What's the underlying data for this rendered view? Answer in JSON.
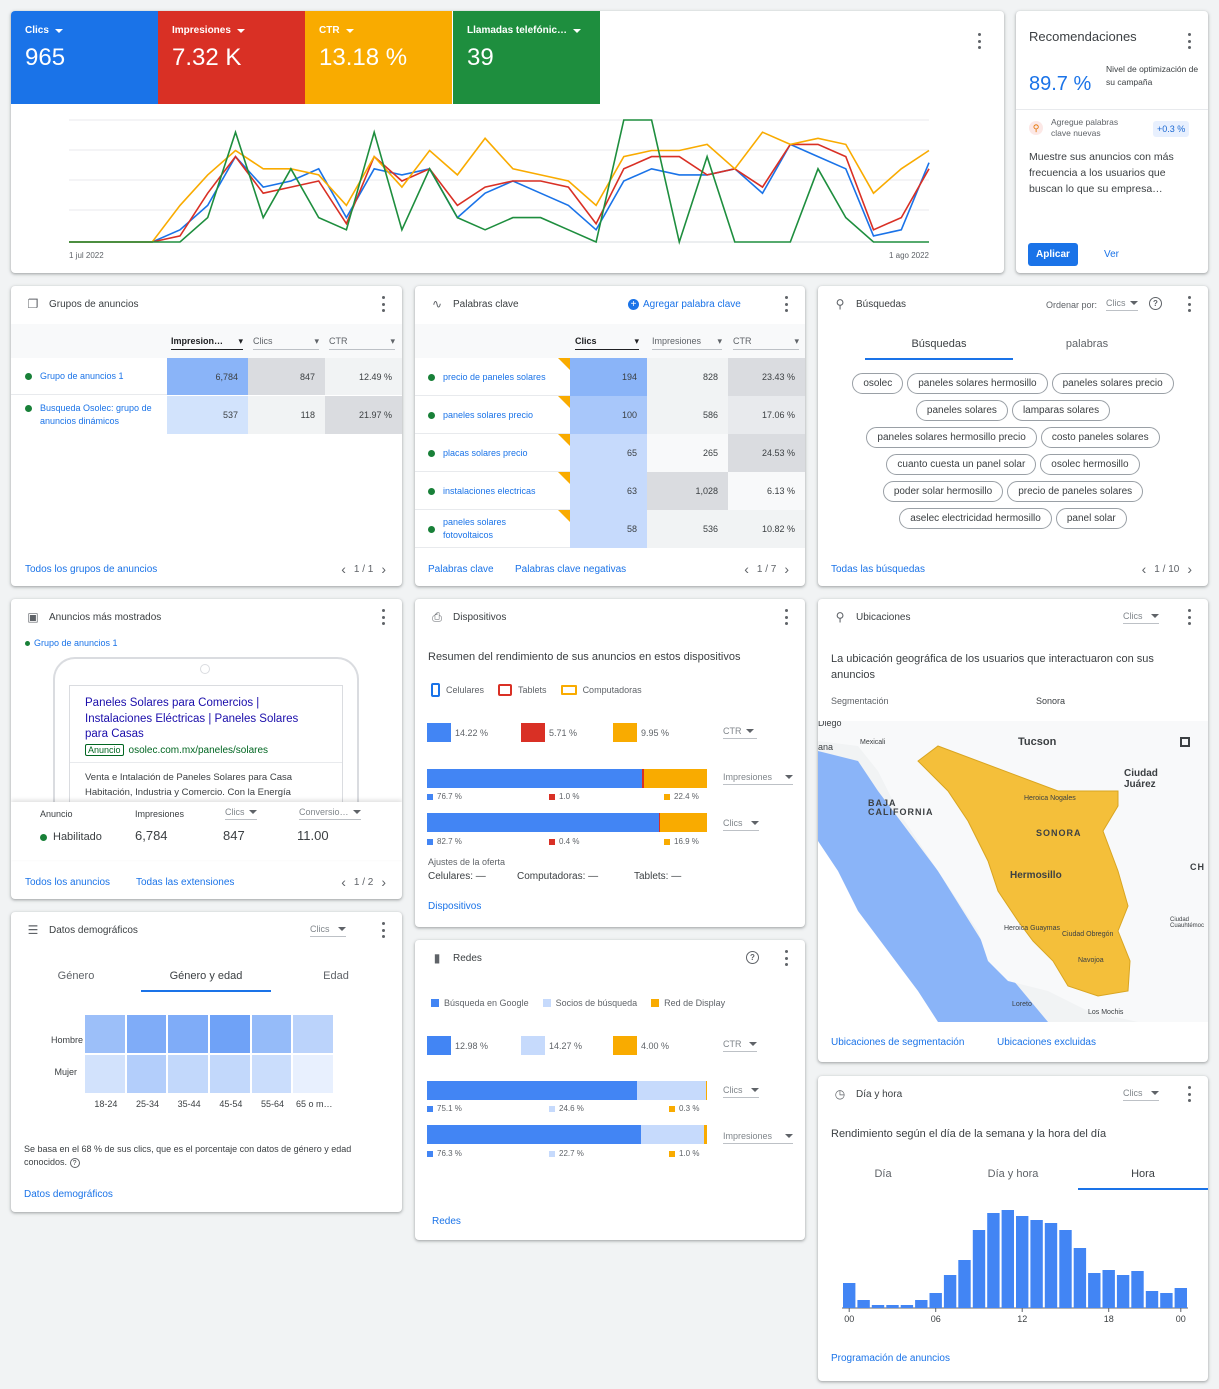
{
  "overview": {
    "metrics": [
      {
        "label": "Clics",
        "value": "965",
        "color": "#1a73e8"
      },
      {
        "label": "Impresiones",
        "value": "7.32 K",
        "color": "#d93025"
      },
      {
        "label": "CTR",
        "value": "13.18 %",
        "color": "#f9ab00"
      },
      {
        "label": "Llamadas telefónic…",
        "value": "39",
        "color": "#1e8e3e"
      }
    ],
    "x_start": "1 jul 2022",
    "x_end": "1 ago 2022",
    "chart_data": {
      "type": "line",
      "title": "",
      "xlabel": "",
      "ylabel": "",
      "x": [
        "1 jul 2022",
        "",
        "",
        "",
        "",
        "",
        "",
        "",
        "",
        "",
        "",
        "",
        "",
        "",
        "",
        "",
        "",
        "",
        "",
        "",
        "",
        "",
        "",
        "",
        "",
        "",
        "",
        "",
        "",
        "",
        "",
        "1 ago 2022"
      ],
      "series": [
        {
          "name": "Clics",
          "color": "#1a73e8",
          "values": [
            0,
            0,
            0,
            0,
            10,
            30,
            70,
            45,
            50,
            60,
            20,
            60,
            55,
            60,
            20,
            40,
            50,
            40,
            30,
            10,
            50,
            60,
            55,
            55,
            60,
            40,
            80,
            70,
            60,
            5,
            10,
            65
          ]
        },
        {
          "name": "Impresiones",
          "color": "#d93025",
          "values": [
            0,
            0,
            0,
            0,
            5,
            40,
            70,
            40,
            45,
            50,
            15,
            70,
            50,
            60,
            30,
            45,
            50,
            50,
            45,
            15,
            60,
            70,
            70,
            55,
            60,
            45,
            80,
            80,
            70,
            10,
            20,
            60
          ]
        },
        {
          "name": "CTR",
          "color": "#f9ab00",
          "values": [
            0,
            0,
            0,
            0,
            30,
            55,
            75,
            60,
            60,
            55,
            30,
            70,
            45,
            75,
            55,
            85,
            60,
            55,
            50,
            30,
            70,
            75,
            75,
            80,
            60,
            90,
            80,
            85,
            80,
            40,
            60,
            75
          ]
        },
        {
          "name": "Llamadas telefónicas",
          "color": "#1e8e3e",
          "values": [
            0,
            0,
            0,
            0,
            0,
            20,
            90,
            20,
            60,
            20,
            10,
            90,
            10,
            60,
            20,
            10,
            20,
            20,
            10,
            0,
            100,
            100,
            0,
            70,
            0,
            0,
            0,
            60,
            20,
            0,
            0,
            0
          ]
        }
      ]
    }
  },
  "recommendations": {
    "title": "Recomendaciones",
    "score": "89.7 %",
    "score_label": "Nivel de optimización de su campaña",
    "item_text": "Agregue palabras clave nuevas",
    "item_delta": "+0.3 %",
    "description": "Muestre sus anuncios con más frecuencia a los usuarios que buscan lo que su empresa…",
    "apply_label": "Aplicar",
    "view_label": "Ver"
  },
  "ad_groups": {
    "title": "Grupos de anuncios",
    "columns": [
      "Impresion…",
      "Clics",
      "CTR"
    ],
    "rows": [
      {
        "name": "Grupo de anuncios 1",
        "impressions": "6,784",
        "clicks": "847",
        "ctr": "12.49 %"
      },
      {
        "name": "Busqueda Osolec: grupo de anuncios dinámicos",
        "impressions": "537",
        "clicks": "118",
        "ctr": "21.97 %"
      }
    ],
    "footer_link": "Todos los grupos de anuncios",
    "pager": "1 / 1"
  },
  "keywords": {
    "title": "Palabras clave",
    "add_label": "Agregar palabra clave",
    "columns": [
      "Clics",
      "Impresiones",
      "CTR"
    ],
    "rows": [
      {
        "name": "precio de paneles solares",
        "clicks": "194",
        "impressions": "828",
        "ctr": "23.43 %"
      },
      {
        "name": "paneles solares precio",
        "clicks": "100",
        "impressions": "586",
        "ctr": "17.06 %"
      },
      {
        "name": "placas solares precio",
        "clicks": "65",
        "impressions": "265",
        "ctr": "24.53 %"
      },
      {
        "name": "instalaciones electricas",
        "clicks": "63",
        "impressions": "1,028",
        "ctr": "6.13 %"
      },
      {
        "name": "paneles solares fotovoltaicos",
        "clicks": "58",
        "impressions": "536",
        "ctr": "10.82 %"
      }
    ],
    "footer_link1": "Palabras clave",
    "footer_link2": "Palabras clave negativas",
    "pager": "1 / 7"
  },
  "searches": {
    "title": "Búsquedas",
    "sort_label": "Ordenar por:",
    "sort_value": "Clics",
    "tab1": "Búsquedas",
    "tab2": "palabras",
    "chips": [
      "osolec",
      "paneles solares hermosillo",
      "paneles solares precio",
      "paneles solares",
      "lamparas solares",
      "paneles solares hermosillo precio",
      "costo paneles solares",
      "cuanto cuesta un panel solar",
      "osolec hermosillo",
      "poder solar hermosillo",
      "precio de paneles solares",
      "aselec electricidad hermosillo",
      "panel solar"
    ],
    "footer_link": "Todas las búsquedas",
    "pager": "1 / 10"
  },
  "top_ads": {
    "title": "Anuncios más mostrados",
    "group": "Grupo de anuncios 1",
    "ad_title": "Paneles Solares para Comercios | Instalaciones Eléctricas | Paneles Solares para Casas",
    "ad_badge": "Anuncio",
    "ad_url": "osolec.com.mx/paneles/solares",
    "ad_desc": "Venta e Intalación de Paneles Solares para Casa Habitación, Industria y Comercio. Con la Energía",
    "stat_labels": [
      "Anuncio",
      "Impresiones",
      "Clics",
      "Conversio…"
    ],
    "status": "Habilitado",
    "impressions": "6,784",
    "clicks": "847",
    "conversions": "11.00",
    "footer_link1": "Todos los anuncios",
    "footer_link2": "Todas las extensiones",
    "pager": "1 / 2"
  },
  "devices": {
    "title": "Dispositivos",
    "subtitle": "Resumen del rendimiento de sus anuncios en estos dispositivos",
    "legend": [
      "Celulares",
      "Tablets",
      "Computadoras"
    ],
    "ctr_values": [
      "14.22 %",
      "5.71 %",
      "9.95 %"
    ],
    "ctr_label": "CTR",
    "impr_label": "Impresiones",
    "clicks_label": "Clics",
    "impr_split": [
      76.7,
      1.0,
      22.4
    ],
    "impr_split_text": [
      "76.7 %",
      "1.0 %",
      "22.4 %"
    ],
    "clicks_split": [
      82.7,
      0.4,
      16.9
    ],
    "clicks_split_text": [
      "82.7 %",
      "0.4 %",
      "16.9 %"
    ],
    "bid_title": "Ajustes de la oferta",
    "bid_mobile": "Celulares: —",
    "bid_desktop": "Computadoras: —",
    "bid_tablet": "Tablets: —",
    "footer_link": "Dispositivos"
  },
  "locations": {
    "title": "Ubicaciones",
    "metric": "Clics",
    "subtitle": "La ubicación geográfica de los usuarios que interactuaron con sus anuncios",
    "seg_label": "Segmentación",
    "seg_value": "Sonora",
    "map_labels": [
      "Tucson",
      "Ciudad Juárez",
      "BAJA CALIFORNIA",
      "SONORA",
      "Hermosillo",
      "Heroica Nogales",
      "Mexicali",
      "Heroica Guaymas",
      "Ciudad Obregón",
      "Navojoa",
      "Loreto",
      "Los Mochis",
      "Ciudad Cuauhtémoc",
      "CH",
      "Diego",
      "ana"
    ],
    "footer_link1": "Ubicaciones de segmentación",
    "footer_link2": "Ubicaciones excluidas"
  },
  "demographics": {
    "title": "Datos demográficos",
    "metric": "Clics",
    "tabs": [
      "Género",
      "Género y edad",
      "Edad"
    ],
    "rows": [
      "Hombre",
      "Mujer"
    ],
    "ages": [
      "18-24",
      "25-34",
      "35-44",
      "45-54",
      "55-64",
      "65 o m…"
    ],
    "heat": [
      [
        0.55,
        0.75,
        0.75,
        0.85,
        0.6,
        0.35
      ],
      [
        0.2,
        0.4,
        0.3,
        0.3,
        0.25,
        0.05
      ]
    ],
    "note": "Se basa en el 68 % de sus clics, que es el porcentaje con datos de género y edad conocidos.",
    "footer_link": "Datos demográficos"
  },
  "networks": {
    "title": "Redes",
    "legend": [
      "Búsqueda en Google",
      "Socios de búsqueda",
      "Red de Display"
    ],
    "ctr_values": [
      "12.98 %",
      "14.27 %",
      "4.00 %"
    ],
    "ctr_label": "CTR",
    "clicks_label": "Clics",
    "impr_label": "Impresiones",
    "clicks_split": [
      75.1,
      24.6,
      0.3
    ],
    "clicks_split_text": [
      "75.1 %",
      "24.6 %",
      "0.3 %"
    ],
    "impr_split": [
      76.3,
      22.7,
      1.0
    ],
    "impr_split_text": [
      "76.3 %",
      "22.7 %",
      "1.0 %"
    ],
    "footer_link": "Redes"
  },
  "day_hour": {
    "title": "Día y hora",
    "metric": "Clics",
    "subtitle": "Rendimiento según el día de la semana y la hora del día",
    "tabs": [
      "Día",
      "Día y hora",
      "Hora"
    ],
    "x_ticks": [
      "00",
      "06",
      "12",
      "18",
      "00"
    ],
    "chart_data": {
      "type": "bar",
      "title": "",
      "xlabel": "",
      "ylabel": "",
      "categories": [
        "00",
        "01",
        "02",
        "03",
        "04",
        "05",
        "06",
        "07",
        "08",
        "09",
        "10",
        "11",
        "12",
        "13",
        "14",
        "15",
        "16",
        "17",
        "18",
        "19",
        "20",
        "21",
        "22",
        "23"
      ],
      "values": [
        25,
        8,
        3,
        3,
        3,
        8,
        15,
        33,
        48,
        78,
        95,
        98,
        92,
        88,
        85,
        78,
        60,
        35,
        38,
        33,
        37,
        17,
        15,
        20
      ]
    },
    "footer_link": "Programación de anuncios"
  }
}
